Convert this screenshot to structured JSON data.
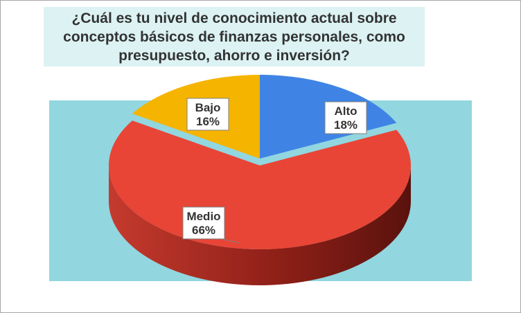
{
  "chart_data": {
    "type": "pie",
    "title": "¿Cuál es tu nivel de conocimiento actual sobre conceptos básicos de finanzas personales, como presupuesto, ahorro e inversión?",
    "title_lines": [
      "¿Cuál es tu nivel de conocimiento actual sobre",
      "conceptos básicos de finanzas personales, como",
      "presupuesto, ahorro e inversión?"
    ],
    "categories": [
      "Alto",
      "Medio",
      "Bajo"
    ],
    "values": [
      18,
      66,
      16
    ],
    "value_labels": [
      "18%",
      "66%",
      "16%"
    ],
    "colors": [
      "#3f84e5",
      "#e84537",
      "#f5b400"
    ],
    "style": "3d-exploded-perspective",
    "legend": "none",
    "background": "#92d6df",
    "title_background": "#dcf2f3"
  }
}
